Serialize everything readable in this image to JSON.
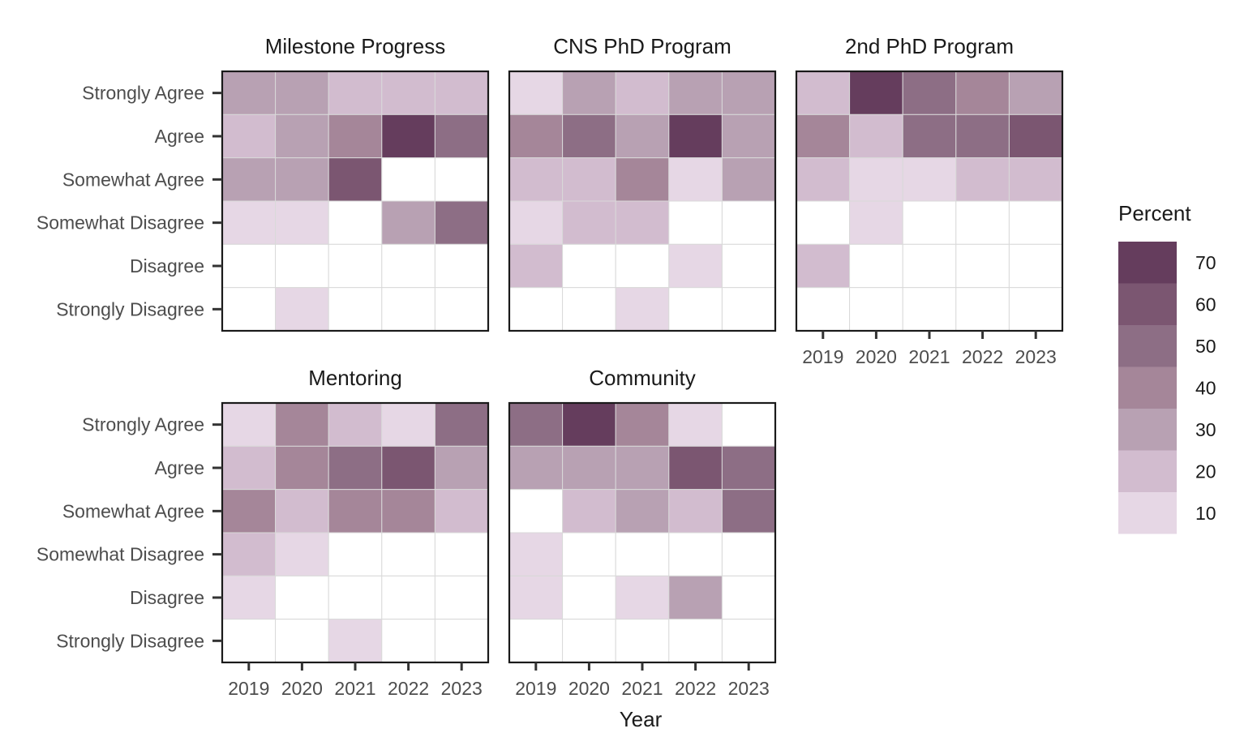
{
  "chart_data": {
    "type": "heatmap",
    "xlabel": "Year",
    "x": [
      "2019",
      "2020",
      "2021",
      "2022",
      "2023"
    ],
    "y": [
      "Strongly Agree",
      "Agree",
      "Somewhat Agree",
      "Somewhat Disagree",
      "Disagree",
      "Strongly Disagree"
    ],
    "legend": {
      "title": "Percent",
      "ticks": [
        70,
        60,
        50,
        40,
        30,
        20,
        10
      ],
      "bins": [
        {
          "label": "70",
          "color": "#653d5d"
        },
        {
          "label": "60",
          "color": "#7b5671"
        },
        {
          "label": "50",
          "color": "#8d6e85"
        },
        {
          "label": "40",
          "color": "#a58699"
        },
        {
          "label": "30",
          "color": "#b8a1b3"
        },
        {
          "label": "20",
          "color": "#d2bccf"
        },
        {
          "label": "10",
          "color": "#e6d7e5"
        }
      ]
    },
    "panels": [
      {
        "title": "Milestone Progress",
        "values": [
          [
            30,
            30,
            20,
            20,
            20
          ],
          [
            20,
            30,
            40,
            70,
            50
          ],
          [
            30,
            30,
            60,
            0,
            0
          ],
          [
            10,
            10,
            0,
            30,
            50
          ],
          [
            0,
            0,
            0,
            0,
            0
          ],
          [
            0,
            10,
            0,
            0,
            0
          ]
        ]
      },
      {
        "title": "CNS PhD Program",
        "values": [
          [
            10,
            30,
            20,
            30,
            30
          ],
          [
            40,
            50,
            30,
            70,
            30
          ],
          [
            20,
            20,
            40,
            10,
            30
          ],
          [
            10,
            20,
            20,
            0,
            0
          ],
          [
            20,
            0,
            0,
            10,
            0
          ],
          [
            0,
            0,
            10,
            0,
            0
          ]
        ]
      },
      {
        "title": "2nd PhD Program",
        "values": [
          [
            20,
            70,
            50,
            40,
            30
          ],
          [
            40,
            20,
            50,
            50,
            60
          ],
          [
            20,
            10,
            10,
            20,
            20
          ],
          [
            0,
            10,
            0,
            0,
            0
          ],
          [
            20,
            0,
            0,
            0,
            0
          ],
          [
            0,
            0,
            0,
            0,
            0
          ]
        ]
      },
      {
        "title": "Mentoring",
        "values": [
          [
            10,
            40,
            20,
            10,
            50
          ],
          [
            20,
            40,
            50,
            60,
            30
          ],
          [
            40,
            20,
            40,
            40,
            20
          ],
          [
            20,
            10,
            0,
            0,
            0
          ],
          [
            10,
            0,
            0,
            0,
            0
          ],
          [
            0,
            0,
            10,
            0,
            0
          ]
        ]
      },
      {
        "title": "Community",
        "values": [
          [
            50,
            70,
            40,
            10,
            0
          ],
          [
            30,
            30,
            30,
            60,
            50
          ],
          [
            0,
            20,
            30,
            20,
            50
          ],
          [
            10,
            0,
            0,
            0,
            0
          ],
          [
            10,
            0,
            10,
            30,
            0
          ],
          [
            0,
            0,
            0,
            0,
            0
          ]
        ]
      }
    ]
  }
}
